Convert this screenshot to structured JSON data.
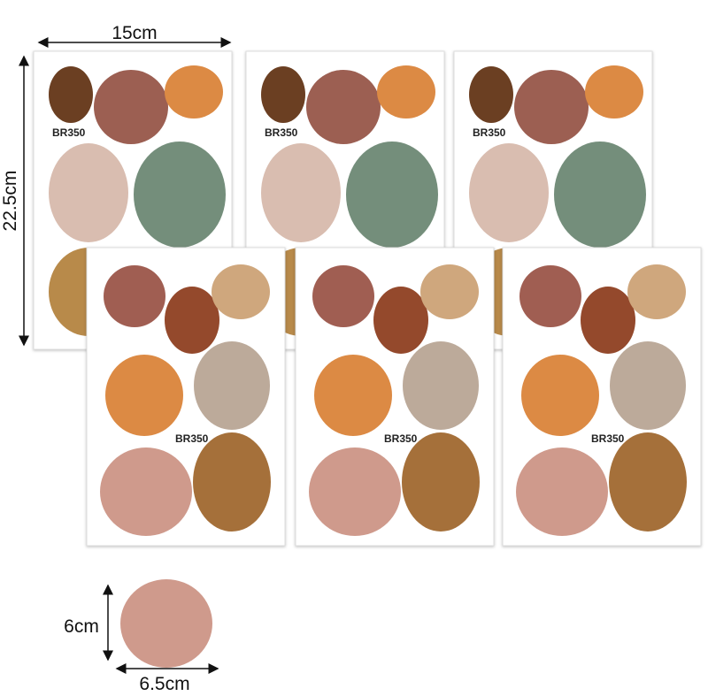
{
  "dimensions": {
    "width": "15cm",
    "height": "22.5cm"
  },
  "sheets": [
    {
      "code": "BR350"
    },
    {
      "code": "BR350"
    },
    {
      "code": "BR350"
    },
    {
      "code": "BR350"
    },
    {
      "code": "BR350"
    },
    {
      "code": "BR350"
    }
  ],
  "sample": {
    "height": "6cm",
    "width": "6.5cm"
  }
}
